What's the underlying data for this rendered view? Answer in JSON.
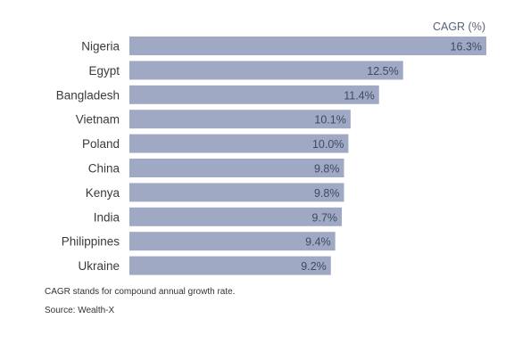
{
  "chart_data": {
    "type": "bar",
    "orientation": "horizontal",
    "unit_label": "CAGR (%)",
    "categories": [
      "Nigeria",
      "Egypt",
      "Bangladesh",
      "Vietnam",
      "Poland",
      "China",
      "Kenya",
      "India",
      "Philippines",
      "Ukraine"
    ],
    "values": [
      16.3,
      12.5,
      11.4,
      10.1,
      10.0,
      9.8,
      9.8,
      9.7,
      9.4,
      9.2
    ],
    "value_labels": [
      "16.3%",
      "12.5%",
      "11.4%",
      "10.1%",
      "10.0%",
      "9.8%",
      "9.8%",
      "9.7%",
      "9.4%",
      "9.2%"
    ],
    "xlim": [
      0,
      16.3
    ],
    "grid": false,
    "bar_color": "#9fa9c3",
    "value_label_color": "#3f4a66"
  },
  "footnote": "CAGR stands for compound annual growth rate.",
  "source": "Source: Wealth-X"
}
